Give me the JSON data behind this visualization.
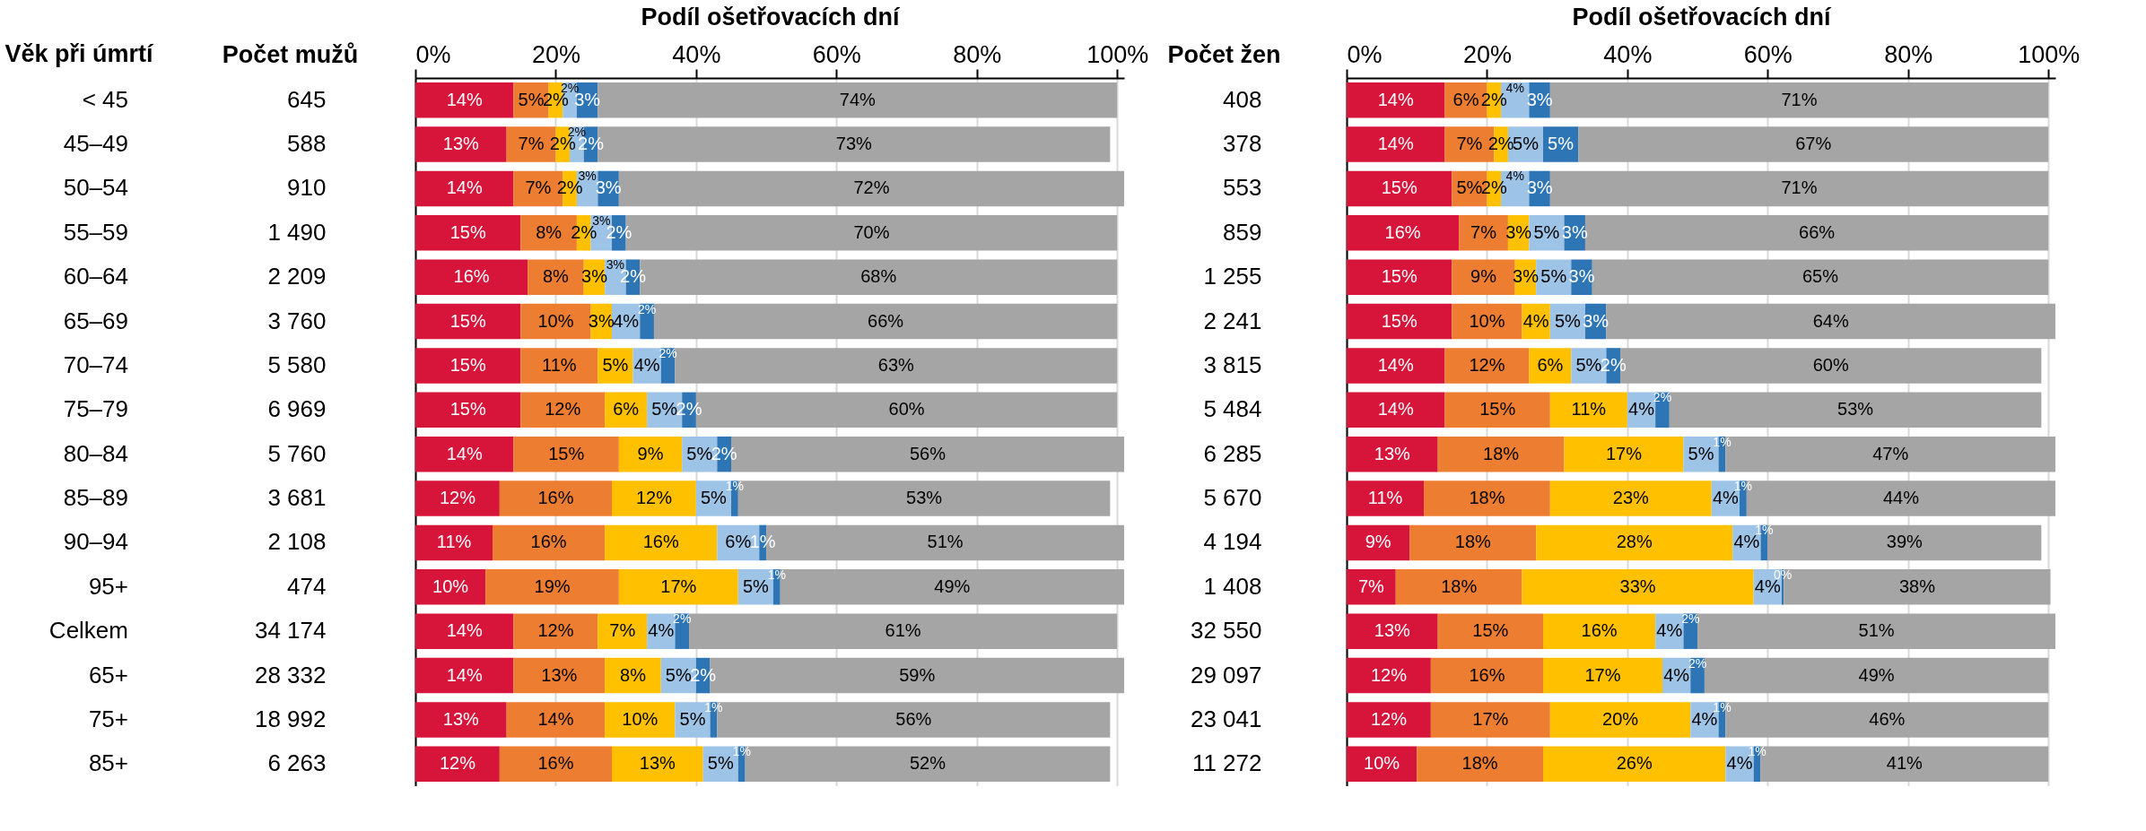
{
  "chart_data": [
    {
      "type": "bar",
      "orientation": "horizontal",
      "stacked": true,
      "xlabel": "Podíl ošetřovacích dní",
      "ylabel": "Počet mužů",
      "categories": [
        "645",
        "588",
        "910",
        "1 490",
        "2 209",
        "3 760",
        "5 580",
        "6 969",
        "5 760",
        "3 681",
        "2 108",
        "474",
        "34 174",
        "28 332",
        "18 992",
        "6 263"
      ],
      "xlim": [
        0,
        101
      ],
      "xticks": [
        {
          "value": 0,
          "label": "0%"
        },
        {
          "value": 20,
          "label": "20%"
        },
        {
          "value": 40,
          "label": "40%"
        },
        {
          "value": 60,
          "label": "60%"
        },
        {
          "value": 80,
          "label": "80%"
        },
        {
          "value": 100,
          "label": "100%"
        }
      ],
      "grid": "x",
      "annotations": [
        "Věk při úmrtí",
        "< 45",
        "45–49",
        "50–54",
        "55–59",
        "60–64",
        "65–69",
        "70–74",
        "75–79",
        "80–84",
        "85–89",
        "90–94",
        "95+",
        "Celkem",
        "65+",
        "75+",
        "85+"
      ],
      "series": [
        {
          "color": "#d7153a",
          "values": [
            14,
            13,
            14,
            15,
            16,
            15,
            15,
            15,
            14,
            12,
            11,
            10,
            14,
            14,
            13,
            12
          ],
          "value_labels": [
            "14%",
            "13%",
            "14%",
            "15%",
            "16%",
            "15%",
            "15%",
            "15%",
            "14%",
            "12%",
            "11%",
            "10%",
            "14%",
            "14%",
            "13%",
            "12%"
          ]
        },
        {
          "color": "#ed7d31",
          "values": [
            5,
            7,
            7,
            8,
            8,
            10,
            11,
            12,
            15,
            16,
            16,
            19,
            12,
            13,
            14,
            16
          ],
          "value_labels": [
            "5%",
            "7%",
            "7%",
            "8%",
            "8%",
            "10%",
            "11%",
            "12%",
            "15%",
            "16%",
            "16%",
            "19%",
            "12%",
            "13%",
            "14%",
            "16%"
          ]
        },
        {
          "color": "#ffc000",
          "values": [
            2,
            2,
            2,
            2,
            3,
            3,
            5,
            6,
            9,
            12,
            16,
            17,
            7,
            8,
            10,
            13
          ],
          "value_labels": [
            "2%",
            "2%",
            "2%",
            "2%",
            "3%",
            "3%",
            "5%",
            "6%",
            "9%",
            "12%",
            "16%",
            "17%",
            "7%",
            "8%",
            "10%",
            "13%"
          ]
        },
        {
          "color": "#9dc3e6",
          "values": [
            2,
            2,
            3,
            3,
            3,
            4,
            4,
            5,
            5,
            5,
            6,
            5,
            4,
            5,
            5,
            5
          ],
          "value_labels": [
            "2%",
            "2%",
            "3%",
            "3%",
            "3%",
            "4%",
            "4%",
            "5%",
            "5%",
            "5%",
            "6%",
            "5%",
            "4%",
            "5%",
            "5%",
            "5%"
          ]
        },
        {
          "color": "#2e75b6",
          "values": [
            3,
            2,
            3,
            2,
            2,
            2,
            2,
            2,
            2,
            1,
            1,
            1,
            2,
            2,
            1,
            1
          ],
          "value_labels": [
            "3%",
            "2%",
            "3%",
            "2%",
            "2%",
            "2%",
            "2%",
            "2%",
            "2%",
            "1%",
            "1%",
            "1%",
            "2%",
            "2%",
            "1%",
            "1%"
          ]
        },
        {
          "color": "#a5a5a5",
          "values": [
            74,
            73,
            72,
            70,
            68,
            66,
            63,
            60,
            56,
            53,
            51,
            49,
            61,
            59,
            56,
            52
          ],
          "value_labels": [
            "74%",
            "73%",
            "72%",
            "70%",
            "68%",
            "66%",
            "63%",
            "60%",
            "56%",
            "53%",
            "51%",
            "49%",
            "61%",
            "59%",
            "56%",
            "52%"
          ]
        }
      ]
    },
    {
      "type": "bar",
      "orientation": "horizontal",
      "stacked": true,
      "xlabel": "Podíl ošetřovacích dní",
      "ylabel": "Počet žen",
      "categories": [
        "408",
        "378",
        "553",
        "859",
        "1 255",
        "2 241",
        "3 815",
        "5 484",
        "6 285",
        "5 670",
        "4 194",
        "1 408",
        "32 550",
        "29 097",
        "23 041",
        "11 272"
      ],
      "xlim": [
        0,
        101
      ],
      "xticks": [
        {
          "value": 0,
          "label": "0%"
        },
        {
          "value": 20,
          "label": "20%"
        },
        {
          "value": 40,
          "label": "40%"
        },
        {
          "value": 60,
          "label": "60%"
        },
        {
          "value": 80,
          "label": "80%"
        },
        {
          "value": 100,
          "label": "100%"
        }
      ],
      "grid": "x",
      "series": [
        {
          "color": "#d7153a",
          "values": [
            14,
            14,
            15,
            16,
            15,
            15,
            14,
            14,
            13,
            11,
            9,
            7,
            13,
            12,
            12,
            10
          ],
          "value_labels": [
            "14%",
            "14%",
            "15%",
            "16%",
            "15%",
            "15%",
            "14%",
            "14%",
            "13%",
            "11%",
            "9%",
            "7%",
            "13%",
            "12%",
            "12%",
            "10%"
          ]
        },
        {
          "color": "#ed7d31",
          "values": [
            6,
            7,
            5,
            7,
            9,
            10,
            12,
            15,
            18,
            18,
            18,
            18,
            15,
            16,
            17,
            18
          ],
          "value_labels": [
            "6%",
            "7%",
            "5%",
            "7%",
            "9%",
            "10%",
            "12%",
            "15%",
            "18%",
            "18%",
            "18%",
            "18%",
            "15%",
            "16%",
            "17%",
            "18%"
          ]
        },
        {
          "color": "#ffc000",
          "values": [
            2,
            2,
            2,
            3,
            3,
            4,
            6,
            11,
            17,
            23,
            28,
            33,
            16,
            17,
            20,
            26
          ],
          "value_labels": [
            "2%",
            "2%",
            "2%",
            "3%",
            "3%",
            "4%",
            "6%",
            "11%",
            "17%",
            "23%",
            "28%",
            "33%",
            "16%",
            "17%",
            "20%",
            "26%"
          ]
        },
        {
          "color": "#9dc3e6",
          "values": [
            4,
            5,
            4,
            5,
            5,
            5,
            5,
            4,
            5,
            4,
            4,
            4,
            4,
            4,
            4,
            4
          ],
          "value_labels": [
            "4%",
            "5%",
            "4%",
            "5%",
            "5%",
            "5%",
            "5%",
            "4%",
            "5%",
            "4%",
            "4%",
            "4%",
            "4%",
            "4%",
            "4%",
            "4%"
          ]
        },
        {
          "color": "#2e75b6",
          "values": [
            3,
            5,
            3,
            3,
            3,
            3,
            2,
            2,
            1,
            1,
            1,
            0.3,
            2,
            2,
            1,
            1
          ],
          "value_labels": [
            "3%",
            "5%",
            "3%",
            "3%",
            "3%",
            "3%",
            "2%",
            "2%",
            "1%",
            "1%",
            "1%",
            "0%",
            "2%",
            "2%",
            "1%",
            "1%"
          ]
        },
        {
          "color": "#a5a5a5",
          "values": [
            71,
            67,
            71,
            66,
            65,
            64,
            60,
            53,
            47,
            44,
            39,
            38,
            51,
            49,
            46,
            41
          ],
          "value_labels": [
            "71%",
            "67%",
            "71%",
            "66%",
            "65%",
            "64%",
            "60%",
            "53%",
            "47%",
            "44%",
            "39%",
            "38%",
            "51%",
            "49%",
            "46%",
            "41%"
          ]
        }
      ]
    }
  ]
}
